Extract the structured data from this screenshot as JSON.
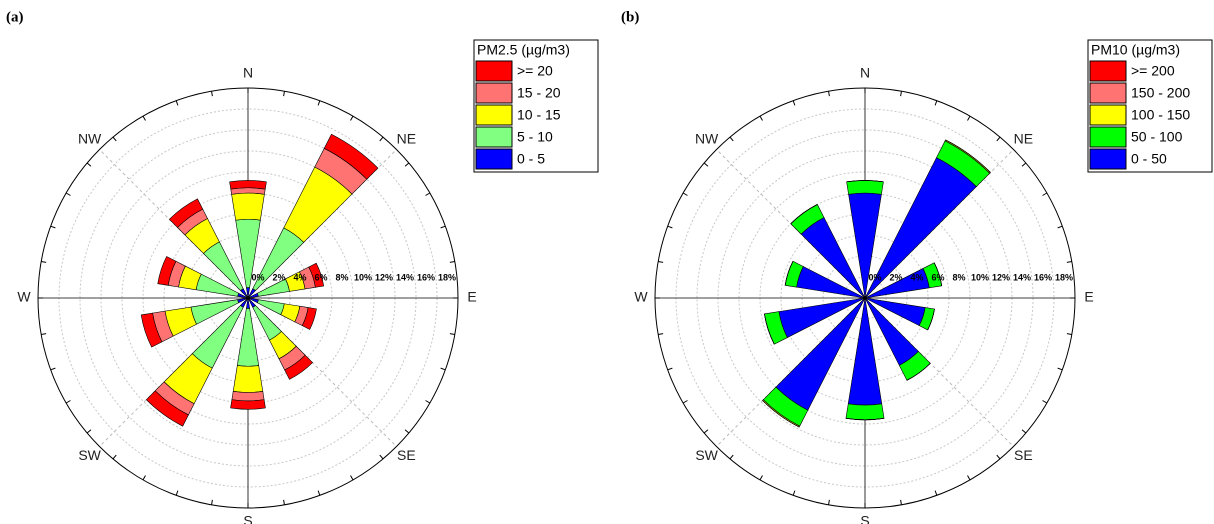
{
  "chart_data": [
    {
      "type": "windrose",
      "label": "(a)",
      "legend_title": "PM2.5 (µg/m3)",
      "x": [
        0,
        36,
        72,
        108,
        144,
        180,
        216,
        252,
        288,
        324
      ],
      "compass": [
        "N",
        "NE",
        "E",
        "SE",
        "S",
        "SW",
        "W",
        "NW"
      ],
      "rlim": [
        0,
        20
      ],
      "rticks": [
        {
          "value": 0,
          "label": "0%"
        },
        {
          "value": 2,
          "label": "2%"
        },
        {
          "value": 4,
          "label": "4%"
        },
        {
          "value": 6,
          "label": "6%"
        },
        {
          "value": 8,
          "label": "8%"
        },
        {
          "value": 10,
          "label": "10%"
        },
        {
          "value": 12,
          "label": "12%"
        },
        {
          "value": 14,
          "label": "14%"
        },
        {
          "value": 16,
          "label": "16%"
        },
        {
          "value": 18,
          "label": "18%"
        }
      ],
      "series": [
        {
          "name": ">= 20",
          "color": "#ff0000",
          "values": [
            0.7,
            1.5,
            0.8,
            0.8,
            1.0,
            0.8,
            1.2,
            1.1,
            1.0,
            1.1
          ]
        },
        {
          "name": "15 - 20",
          "color": "#ff7373",
          "values": [
            0.5,
            2.0,
            1.0,
            0.8,
            1.2,
            0.8,
            1.2,
            1.2,
            1.0,
            1.0
          ]
        },
        {
          "name": "10 - 15",
          "color": "#ffff00",
          "values": [
            2.5,
            6.5,
            1.5,
            1.5,
            2.0,
            2.5,
            3.8,
            2.5,
            1.7,
            2.5
          ]
        },
        {
          "name": "5 - 10",
          "color": "#80ff80",
          "values": [
            6.5,
            6.5,
            3.0,
            2.5,
            3.5,
            5.5,
            6.5,
            4.5,
            4.0,
            5.0
          ]
        },
        {
          "name": "0 - 5",
          "color": "#0000ff",
          "values": [
            1.0,
            1.0,
            1.0,
            1.0,
            1.0,
            1.0,
            1.0,
            1.0,
            1.0,
            1.0
          ]
        }
      ]
    },
    {
      "type": "windrose",
      "label": "(b)",
      "legend_title": "PM10 (µg/m3)",
      "x": [
        0,
        36,
        72,
        108,
        144,
        180,
        216,
        252,
        288,
        324
      ],
      "compass": [
        "N",
        "NE",
        "E",
        "SE",
        "S",
        "SW",
        "W",
        "NW"
      ],
      "rlim": [
        0,
        20
      ],
      "rticks": [
        {
          "value": 0,
          "label": "0%"
        },
        {
          "value": 2,
          "label": "2%"
        },
        {
          "value": 4,
          "label": "4%"
        },
        {
          "value": 6,
          "label": "6%"
        },
        {
          "value": 8,
          "label": "8%"
        },
        {
          "value": 10,
          "label": "10%"
        },
        {
          "value": 12,
          "label": "12%"
        },
        {
          "value": 14,
          "label": "14%"
        },
        {
          "value": 16,
          "label": "16%"
        },
        {
          "value": 18,
          "label": "18%"
        }
      ],
      "series": [
        {
          "name": ">= 200",
          "color": "#ff0000",
          "values": [
            0,
            0,
            0,
            0,
            0,
            0,
            0,
            0,
            0,
            0
          ]
        },
        {
          "name": "150 - 200",
          "color": "#ff7373",
          "values": [
            0,
            0,
            0,
            0,
            0,
            0,
            0,
            0,
            0,
            0
          ]
        },
        {
          "name": "100 - 150",
          "color": "#ffff00",
          "values": [
            0,
            0.1,
            0,
            0,
            0,
            0,
            0.1,
            0,
            0,
            0
          ]
        },
        {
          "name": "50 - 100",
          "color": "#00ff00",
          "values": [
            1.2,
            1.8,
            1.2,
            0.9,
            1.6,
            1.4,
            1.7,
            1.4,
            1.1,
            1.4
          ]
        },
        {
          "name": "0 - 50",
          "color": "#0000ff",
          "values": [
            10.0,
            15.0,
            6.2,
            5.8,
            7.2,
            10.2,
            12.0,
            8.3,
            6.6,
            8.6
          ]
        }
      ]
    }
  ]
}
